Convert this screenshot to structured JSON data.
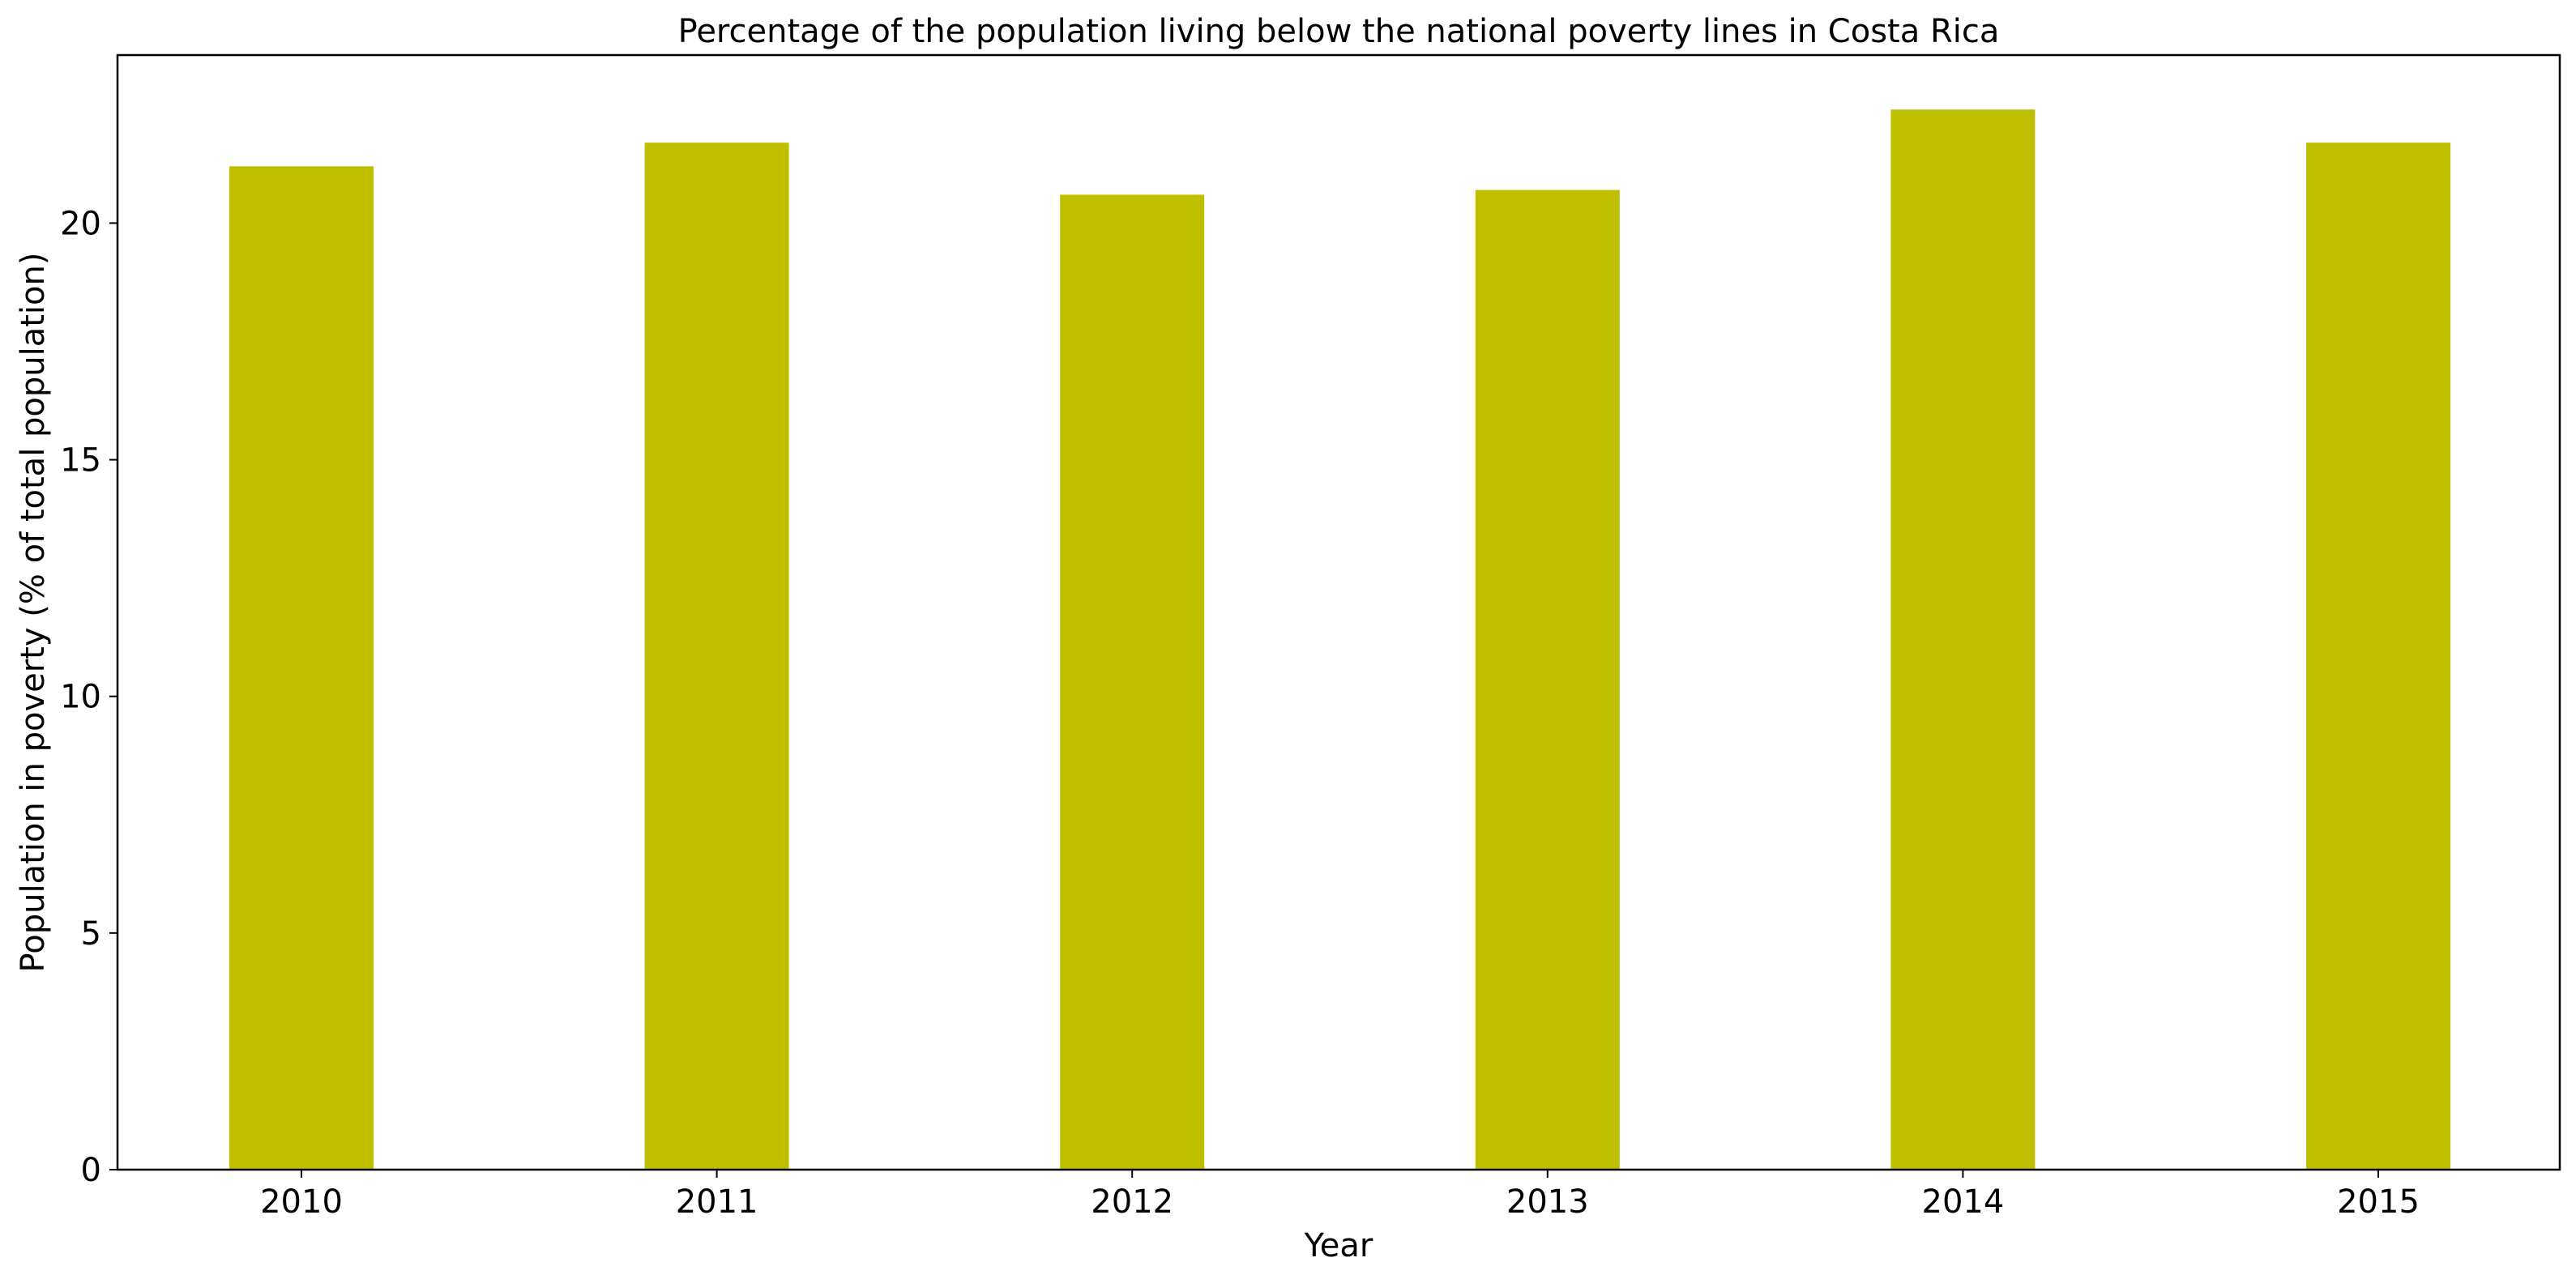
{
  "chart_data": {
    "type": "bar",
    "title": "Percentage of the population living below the national poverty lines in Costa Rica",
    "xlabel": "Year",
    "ylabel": "Population in poverty (% of total population)",
    "categories": [
      "2010",
      "2011",
      "2012",
      "2013",
      "2014",
      "2015"
    ],
    "values": [
      21.2,
      21.7,
      20.6,
      20.7,
      22.4,
      21.7
    ],
    "ylim": [
      0,
      23.55
    ],
    "yticks": [
      "0",
      "5",
      "10",
      "15",
      "20"
    ],
    "grid": false,
    "bar_color": "#bfbf00"
  }
}
